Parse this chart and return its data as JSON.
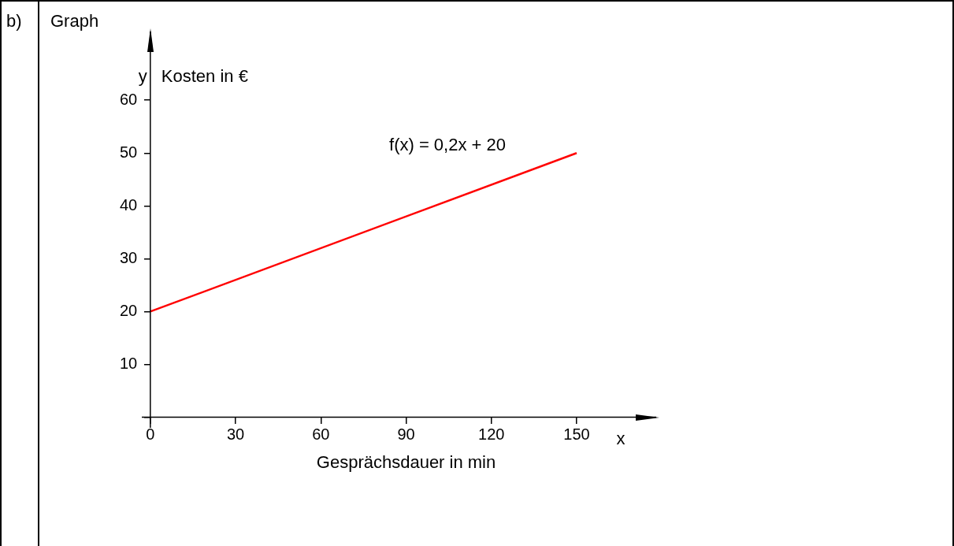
{
  "chart_data": {
    "type": "line",
    "title": "Graph",
    "xlabel": "Gesprächsdauer in min",
    "ylabel": "Kosten in €",
    "annotations": [
      "b)",
      "y",
      "x"
    ],
    "x": [
      0,
      150
    ],
    "series": [
      {
        "name": "f(x) = 0,2x + 20",
        "color": "#ff0000",
        "values": [
          20,
          50
        ]
      }
    ],
    "xlim": [
      -3,
      178
    ],
    "ylim": [
      -2,
      73
    ],
    "xticks": [
      0,
      30,
      60,
      90,
      120,
      150
    ],
    "yticks": [
      {
        "value": 0,
        "label": null
      },
      10,
      20,
      30,
      40,
      50,
      60
    ],
    "grid": false,
    "legend": false,
    "marker": "none",
    "line_style": "solid"
  }
}
